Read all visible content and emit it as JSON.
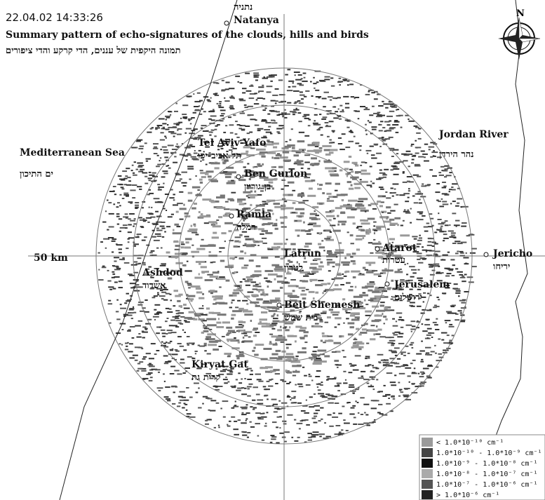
{
  "header": {
    "timestamp": "22.04.02 14:33:26",
    "title": "Summary pattern of echo-signatures of the clouds, hills and birds",
    "subtitle": "תמונה היקפית של עננים, הדי קרקע והדי ציפורים"
  },
  "compass": "N",
  "range_label": "50 km",
  "places": [
    {
      "name": "Natanya",
      "hebrew": "נתניה"
    },
    {
      "name": "Tel Aviv-Yafo",
      "hebrew": "תל אביב-יפו"
    },
    {
      "name": "Ben Gurion",
      "hebrew": "בן גוריון"
    },
    {
      "name": "Ramla",
      "hebrew": "רמלה"
    },
    {
      "name": "Latrun",
      "hebrew": "לטרון"
    },
    {
      "name": "Atarot",
      "hebrew": "עטרות"
    },
    {
      "name": "Jericho",
      "hebrew": "יריחו"
    },
    {
      "name": "Jerusalem",
      "hebrew": "ירושלים"
    },
    {
      "name": "Ashdod",
      "hebrew": "אשדוד"
    },
    {
      "name": "Beit Shemesh",
      "hebrew": "בית שמש"
    },
    {
      "name": "Kiryat Gat",
      "hebrew": "קרית גת"
    },
    {
      "name": "Mediterranean Sea",
      "hebrew": "ים התיכון"
    },
    {
      "name": "Jordan River",
      "hebrew": "נהר הירדן"
    }
  ],
  "legend": [
    {
      "label": "< 1.0*10⁻¹⁰ cm⁻¹",
      "color": "#9a9a9a"
    },
    {
      "label": "1.0*10⁻¹⁰ - 1.0*10⁻⁹ cm⁻¹",
      "color": "#444444"
    },
    {
      "label": "1.0*10⁻⁹ - 1.0*10⁻⁸ cm⁻¹",
      "color": "#111111"
    },
    {
      "label": "1.0*10⁻⁸ - 1.0*10⁻⁷ cm⁻¹",
      "color": "#aaaaaa"
    },
    {
      "label": "1.0*10⁻⁷ - 1.0*10⁻⁶ cm⁻¹",
      "color": "#555555"
    },
    {
      "label": "> 1.0*10⁻⁶ cm⁻¹",
      "color": "#222222"
    }
  ]
}
